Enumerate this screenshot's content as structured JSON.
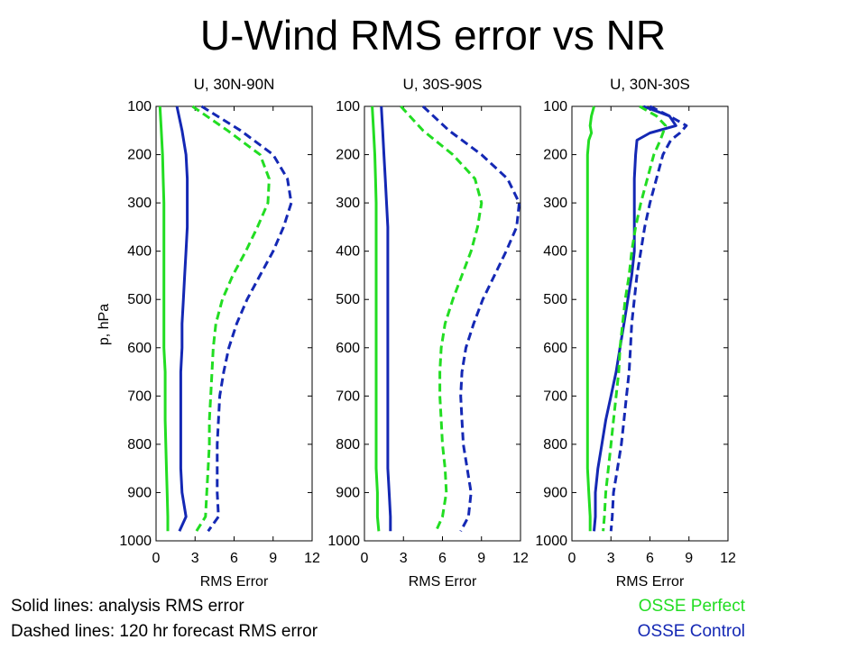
{
  "title": "U-Wind RMS error vs NR",
  "notes": {
    "solid": "Solid lines: analysis RMS error",
    "dashed": "Dashed lines: 120 hr forecast RMS error",
    "perfect": "OSSE Perfect",
    "control": "OSSE Control"
  },
  "colors": {
    "perfect": "#22dd22",
    "control": "#1428b4"
  },
  "chart_data": [
    {
      "type": "line",
      "title": "U, 30N-90N",
      "xlabel": "RMS Error",
      "ylabel": "p, hPa",
      "xlim": [
        0,
        12
      ],
      "ylim": [
        1000,
        100
      ],
      "xticks": [
        "0",
        "3",
        "6",
        "9",
        "12"
      ],
      "yticks": [
        "100",
        "200",
        "300",
        "400",
        "500",
        "600",
        "700",
        "800",
        "900",
        "1000"
      ],
      "y": [
        100,
        150,
        200,
        250,
        300,
        350,
        400,
        450,
        500,
        550,
        600,
        650,
        700,
        750,
        800,
        850,
        900,
        950,
        980
      ],
      "series": [
        {
          "group": "perfect",
          "style": "solid",
          "values": [
            0.3,
            0.4,
            0.5,
            0.55,
            0.6,
            0.6,
            0.6,
            0.6,
            0.6,
            0.6,
            0.6,
            0.7,
            0.7,
            0.7,
            0.75,
            0.8,
            0.85,
            0.9,
            0.9
          ]
        },
        {
          "group": "control",
          "style": "solid",
          "values": [
            1.6,
            2.0,
            2.3,
            2.4,
            2.4,
            2.4,
            2.3,
            2.2,
            2.1,
            2.0,
            2.0,
            1.9,
            1.9,
            1.9,
            1.9,
            1.9,
            2.0,
            2.3,
            1.8
          ]
        },
        {
          "group": "perfect",
          "style": "dashed",
          "values": [
            2.8,
            5.5,
            8.0,
            8.7,
            8.6,
            7.8,
            6.9,
            5.9,
            5.1,
            4.6,
            4.4,
            4.3,
            4.2,
            4.1,
            4.1,
            4.0,
            3.9,
            3.8,
            3.1
          ]
        },
        {
          "group": "control",
          "style": "dashed",
          "values": [
            3.5,
            6.5,
            9.0,
            10.1,
            10.4,
            9.8,
            9.0,
            8.0,
            7.0,
            6.2,
            5.6,
            5.2,
            4.9,
            4.8,
            4.7,
            4.7,
            4.7,
            4.8,
            4.0
          ]
        }
      ]
    },
    {
      "type": "line",
      "title": "U, 30S-90S",
      "xlabel": "RMS Error",
      "ylabel": "",
      "xlim": [
        0,
        12
      ],
      "ylim": [
        1000,
        100
      ],
      "xticks": [
        "0",
        "3",
        "6",
        "9",
        "12"
      ],
      "yticks": [
        "100",
        "200",
        "300",
        "400",
        "500",
        "600",
        "700",
        "800",
        "900",
        "1000"
      ],
      "y": [
        100,
        150,
        200,
        250,
        300,
        350,
        400,
        450,
        500,
        550,
        600,
        650,
        700,
        750,
        800,
        850,
        900,
        950,
        980
      ],
      "series": [
        {
          "group": "perfect",
          "style": "solid",
          "values": [
            0.6,
            0.7,
            0.8,
            0.85,
            0.9,
            0.9,
            0.9,
            0.9,
            0.9,
            0.9,
            0.9,
            0.9,
            0.9,
            0.9,
            0.9,
            0.9,
            1.0,
            1.0,
            1.1
          ]
        },
        {
          "group": "control",
          "style": "solid",
          "values": [
            1.3,
            1.4,
            1.5,
            1.6,
            1.7,
            1.8,
            1.8,
            1.8,
            1.8,
            1.8,
            1.8,
            1.8,
            1.8,
            1.8,
            1.8,
            1.8,
            1.9,
            2.0,
            2.0
          ]
        },
        {
          "group": "perfect",
          "style": "dashed",
          "values": [
            2.8,
            4.5,
            6.8,
            8.5,
            9.0,
            8.7,
            8.2,
            7.5,
            6.8,
            6.2,
            5.9,
            5.8,
            5.8,
            5.9,
            6.0,
            6.2,
            6.3,
            6.0,
            5.5
          ]
        },
        {
          "group": "control",
          "style": "dashed",
          "values": [
            4.5,
            6.5,
            9.0,
            11.0,
            11.9,
            11.7,
            10.9,
            10.0,
            9.1,
            8.4,
            7.8,
            7.5,
            7.4,
            7.5,
            7.6,
            7.9,
            8.2,
            8.0,
            7.4
          ]
        }
      ]
    },
    {
      "type": "line",
      "title": "U, 30N-30S",
      "xlabel": "RMS Error",
      "ylabel": "",
      "xlim": [
        0,
        12
      ],
      "ylim": [
        1000,
        100
      ],
      "xticks": [
        "0",
        "3",
        "6",
        "9",
        "12"
      ],
      "yticks": [
        "100",
        "200",
        "300",
        "400",
        "500",
        "600",
        "700",
        "800",
        "900",
        "1000"
      ],
      "y": [
        100,
        120,
        140,
        155,
        170,
        200,
        250,
        300,
        350,
        400,
        450,
        500,
        550,
        600,
        650,
        700,
        750,
        800,
        850,
        900,
        950,
        980
      ],
      "series": [
        {
          "group": "perfect",
          "style": "solid",
          "values": [
            1.7,
            1.5,
            1.4,
            1.5,
            1.3,
            1.2,
            1.2,
            1.2,
            1.2,
            1.2,
            1.2,
            1.2,
            1.2,
            1.2,
            1.2,
            1.2,
            1.2,
            1.2,
            1.2,
            1.3,
            1.4,
            1.4
          ]
        },
        {
          "group": "control",
          "style": "solid",
          "values": [
            5.5,
            7.5,
            8.0,
            6.0,
            5.0,
            4.9,
            4.8,
            4.8,
            4.8,
            4.8,
            4.6,
            4.3,
            4.0,
            3.7,
            3.4,
            3.0,
            2.6,
            2.3,
            2.0,
            1.8,
            1.8,
            1.7
          ]
        },
        {
          "group": "perfect",
          "style": "dashed",
          "values": [
            5.2,
            6.5,
            7.2,
            7.0,
            6.8,
            6.3,
            5.8,
            5.3,
            4.9,
            4.6,
            4.4,
            4.1,
            3.9,
            3.7,
            3.6,
            3.4,
            3.2,
            3.0,
            2.8,
            2.6,
            2.5,
            2.4
          ]
        },
        {
          "group": "control",
          "style": "dashed",
          "values": [
            6.0,
            7.5,
            8.8,
            8.3,
            7.6,
            7.0,
            6.5,
            6.0,
            5.6,
            5.3,
            5.0,
            4.8,
            4.6,
            4.5,
            4.4,
            4.2,
            4.0,
            3.8,
            3.5,
            3.2,
            3.1,
            3.0
          ]
        }
      ]
    }
  ]
}
